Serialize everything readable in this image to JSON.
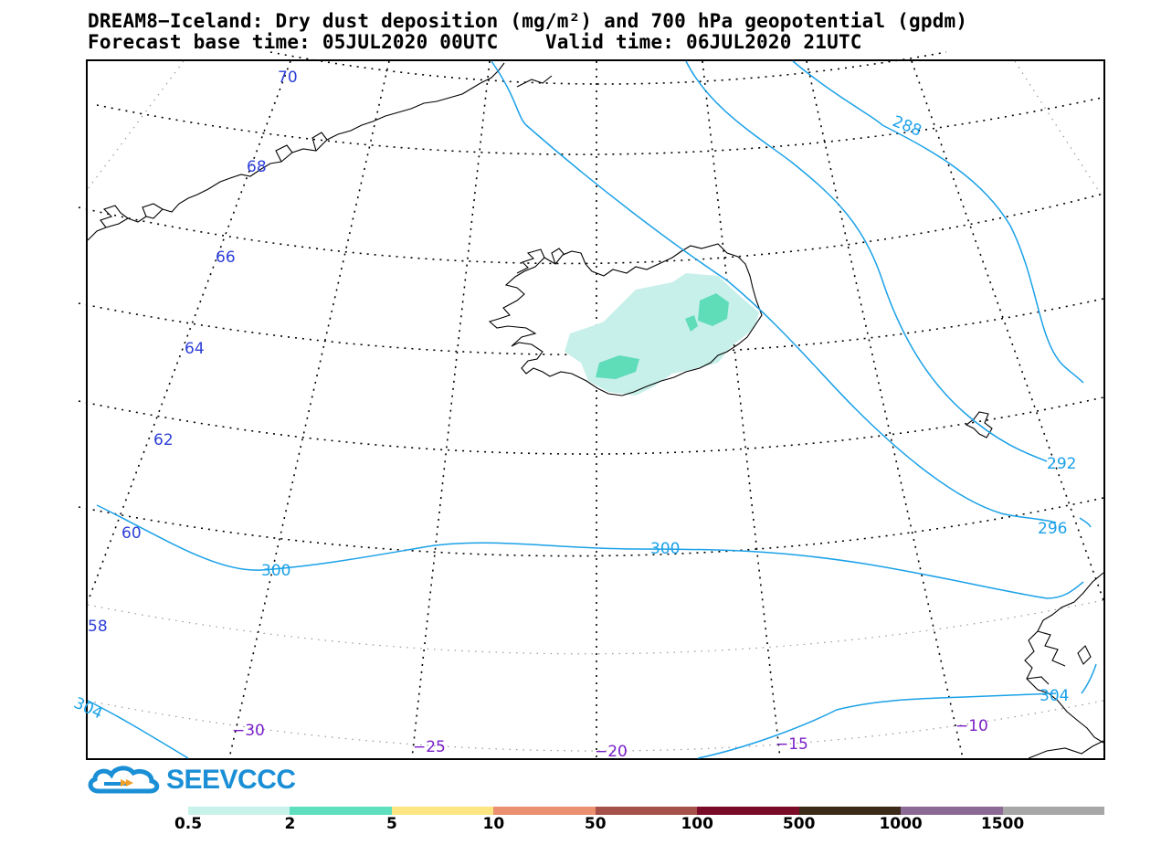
{
  "title_line1": "DREAM8−Iceland: Dry dust deposition (mg/m²) and 700 hPa geopotential (gpdm)",
  "title_line2": "Forecast base time: 05JUL2020 00UTC    Valid time: 06JUL2020 21UTC",
  "logo_text": "SEEVCCC",
  "colors": {
    "contour": "#1aa1e8",
    "lat_label": "#2c3fd8",
    "lon_label": "#7a1fc8",
    "coast": "#000000",
    "dust_light": "#c8f0ea",
    "dust_medium": "#5fdcb8"
  },
  "colorbar": {
    "colors": [
      "#c8f2ea",
      "#5edfbe",
      "#fbe682",
      "#eb9070",
      "#a6504a",
      "#7a0c2a",
      "#3b2a18",
      "#8c6a96",
      "#a7a7a7"
    ],
    "labels": [
      "0.5",
      "2",
      "5",
      "10",
      "50",
      "100",
      "500",
      "1000",
      "1500"
    ]
  },
  "latitude_labels": [
    "70",
    "68",
    "66",
    "64",
    "62",
    "60",
    "58"
  ],
  "longitude_labels": [
    "−30",
    "−25",
    "−20",
    "−15",
    "−10"
  ],
  "contour_labels": [
    "288",
    "292",
    "296",
    "300",
    "300",
    "304",
    "304"
  ]
}
